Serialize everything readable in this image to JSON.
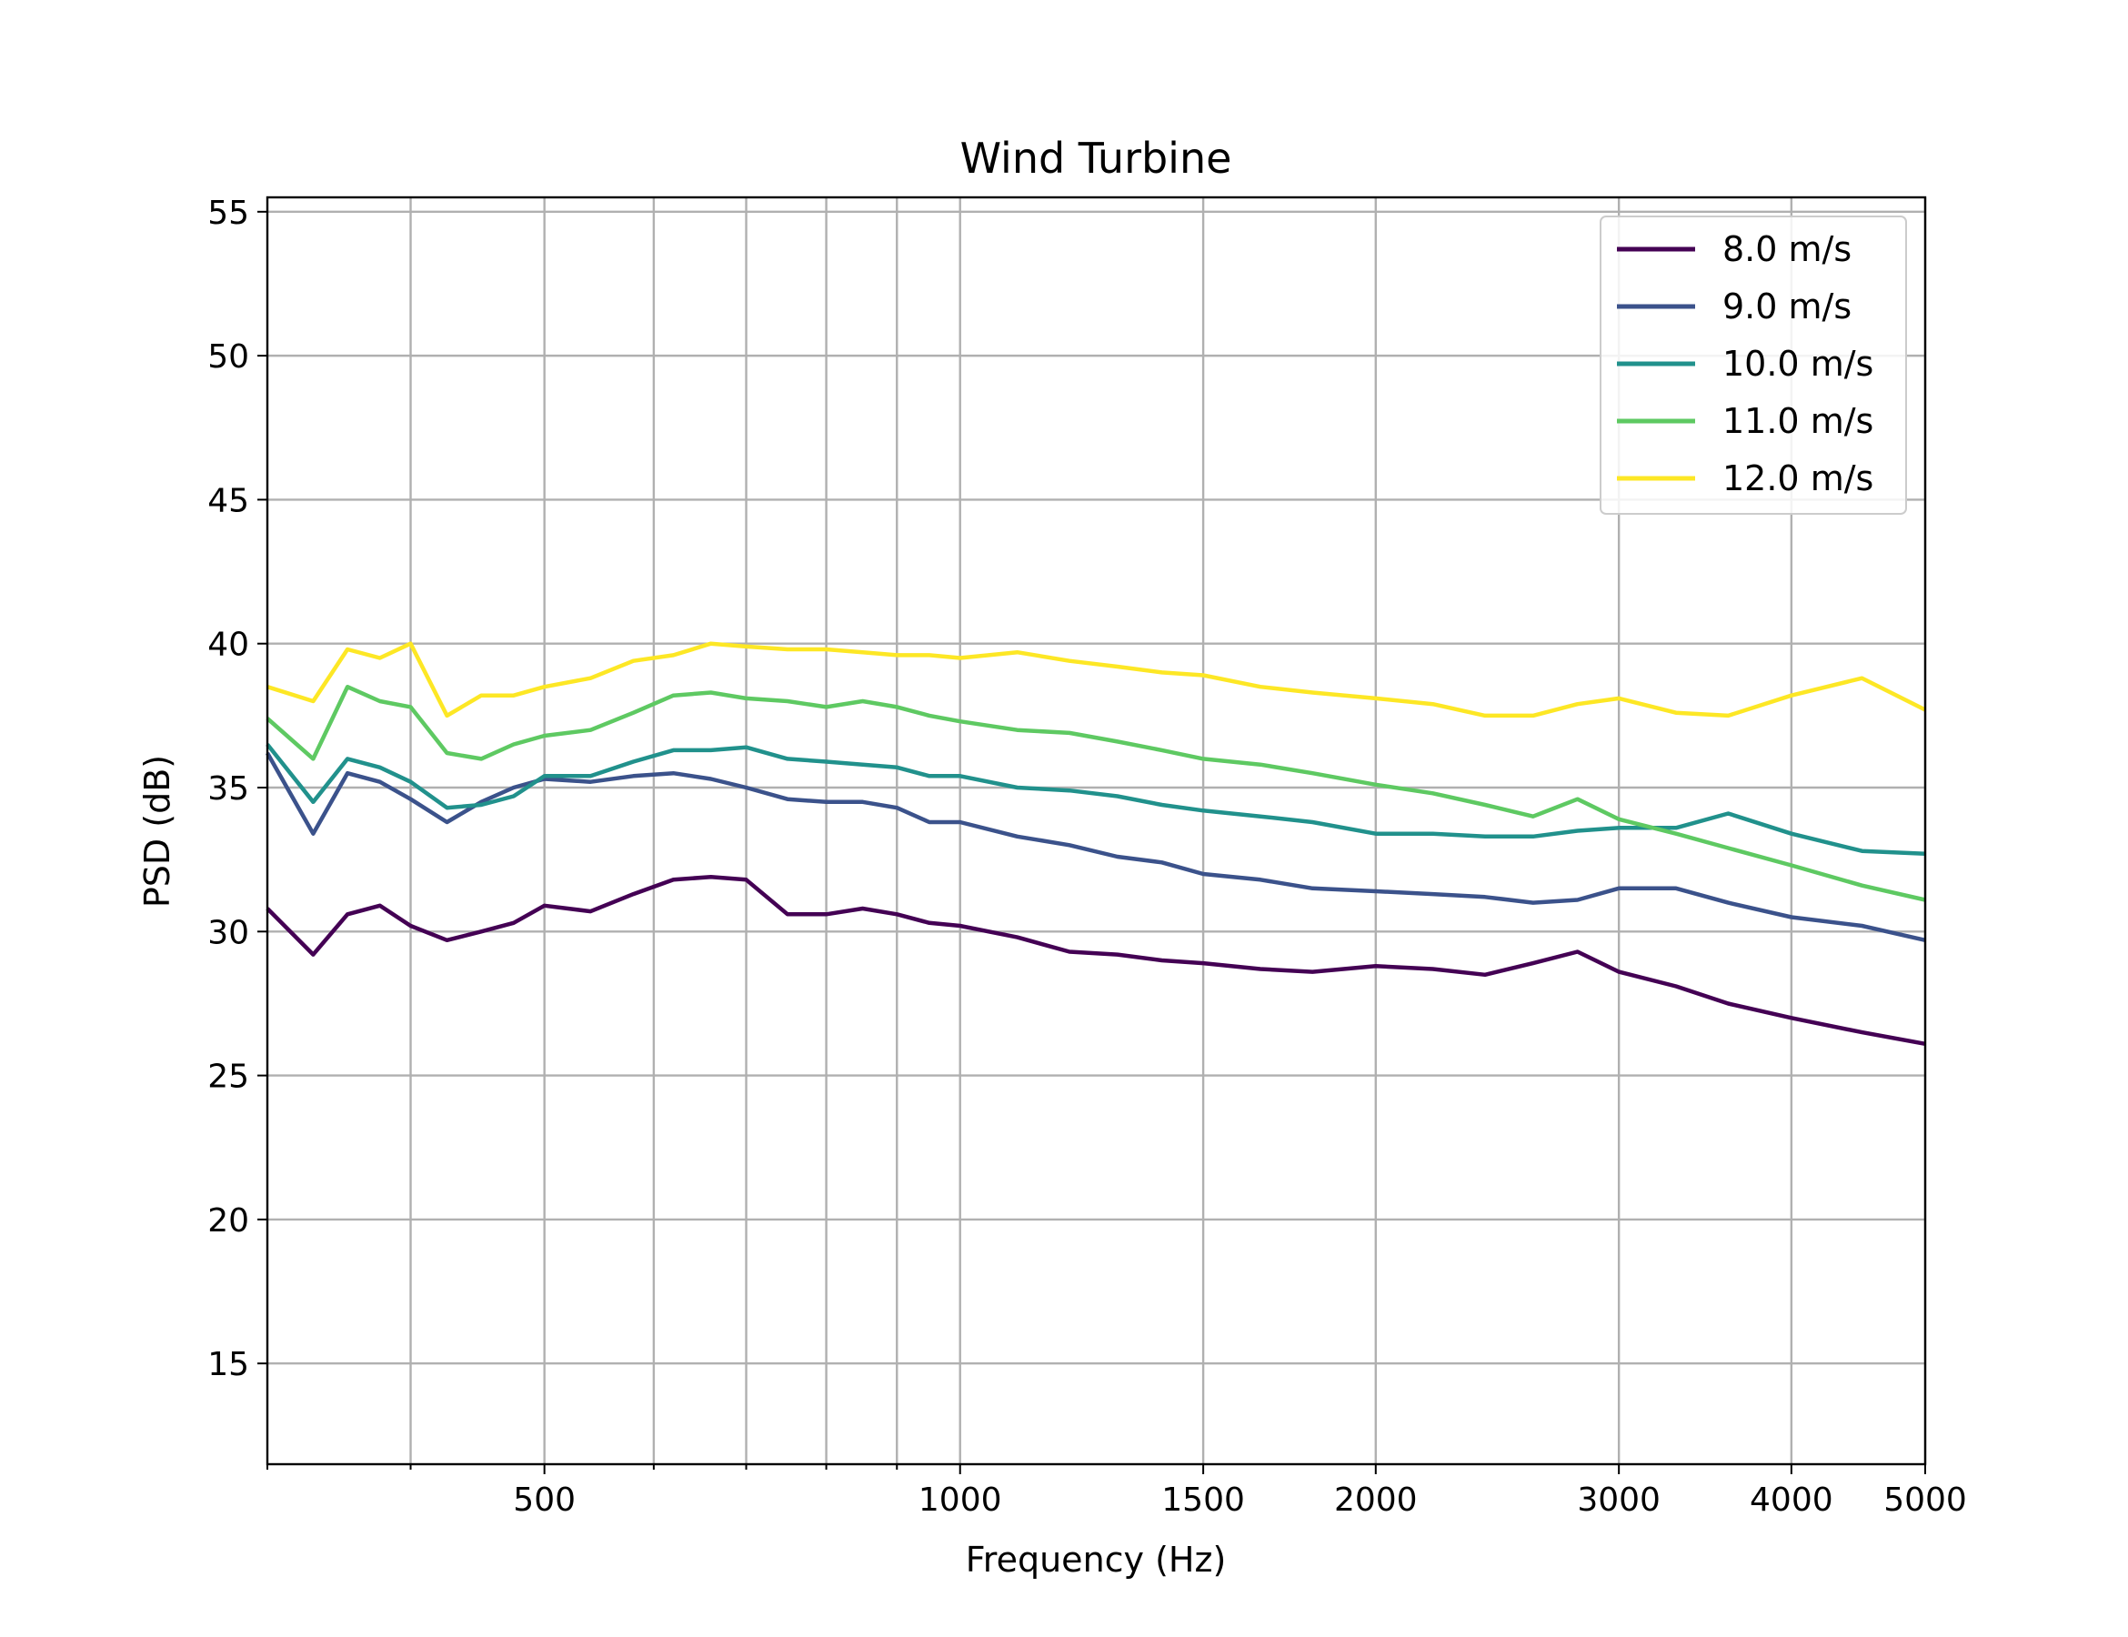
{
  "chart_data": {
    "type": "line",
    "title": "Wind Turbine",
    "xlabel": "Frequency (Hz)",
    "ylabel": "PSD (dB)",
    "xscale": "log",
    "xlim": [
      315,
      5000
    ],
    "ylim": [
      11.5,
      55.5
    ],
    "xticks_major": [
      {
        "value": 500,
        "label": "500"
      },
      {
        "value": 1000,
        "label": "1000"
      },
      {
        "value": 1500,
        "label": "1500"
      },
      {
        "value": 2000,
        "label": "2000"
      },
      {
        "value": 3000,
        "label": "3000"
      },
      {
        "value": 4000,
        "label": "4000"
      },
      {
        "value": 5000,
        "label": "5000"
      }
    ],
    "xticks_minor": [
      400,
      600,
      700,
      800,
      900
    ],
    "yticks": [
      {
        "value": 15,
        "label": "15"
      },
      {
        "value": 20,
        "label": "20"
      },
      {
        "value": 25,
        "label": "25"
      },
      {
        "value": 30,
        "label": "30"
      },
      {
        "value": 35,
        "label": "35"
      },
      {
        "value": 40,
        "label": "40"
      },
      {
        "value": 45,
        "label": "45"
      },
      {
        "value": 50,
        "label": "50"
      },
      {
        "value": 55,
        "label": "55"
      }
    ],
    "grid": true,
    "legend_position": "upper right",
    "x": [
      315,
      340,
      360,
      380,
      400,
      425,
      450,
      475,
      500,
      540,
      580,
      620,
      660,
      700,
      750,
      800,
      850,
      900,
      950,
      1000,
      1100,
      1200,
      1300,
      1400,
      1500,
      1650,
      1800,
      2000,
      2200,
      2400,
      2600,
      2800,
      3000,
      3300,
      3600,
      4000,
      4500,
      5000
    ],
    "series": [
      {
        "name": "8.0 m/s",
        "color": "#440154",
        "values": [
          30.8,
          29.2,
          30.6,
          30.9,
          30.2,
          29.7,
          30.0,
          30.3,
          30.9,
          30.7,
          31.3,
          31.8,
          31.9,
          31.8,
          30.6,
          30.6,
          30.8,
          30.6,
          30.3,
          30.2,
          29.8,
          29.3,
          29.2,
          29.0,
          28.9,
          28.7,
          28.6,
          28.8,
          28.7,
          28.5,
          28.9,
          29.3,
          28.6,
          28.1,
          27.5,
          27.0,
          26.5,
          26.1
        ]
      },
      {
        "name": "9.0 m/s",
        "color": "#3b528b",
        "values": [
          36.2,
          33.4,
          35.5,
          35.2,
          34.6,
          33.8,
          34.5,
          35.0,
          35.3,
          35.2,
          35.4,
          35.5,
          35.3,
          35.0,
          34.6,
          34.5,
          34.5,
          34.3,
          33.8,
          33.8,
          33.3,
          33.0,
          32.6,
          32.4,
          32.0,
          31.8,
          31.5,
          31.4,
          31.3,
          31.2,
          31.0,
          31.1,
          31.5,
          31.5,
          31.0,
          30.5,
          30.2,
          29.7
        ]
      },
      {
        "name": "10.0 m/s",
        "color": "#21918c",
        "values": [
          36.5,
          34.5,
          36.0,
          35.7,
          35.2,
          34.3,
          34.4,
          34.7,
          35.4,
          35.4,
          35.9,
          36.3,
          36.3,
          36.4,
          36.0,
          35.9,
          35.8,
          35.7,
          35.4,
          35.4,
          35.0,
          34.9,
          34.7,
          34.4,
          34.2,
          34.0,
          33.8,
          33.4,
          33.4,
          33.3,
          33.3,
          33.5,
          33.6,
          33.6,
          34.1,
          33.4,
          32.8,
          32.7
        ]
      },
      {
        "name": "11.0 m/s",
        "color": "#5ec962",
        "values": [
          37.4,
          36.0,
          38.5,
          38.0,
          37.8,
          36.2,
          36.0,
          36.5,
          36.8,
          37.0,
          37.6,
          38.2,
          38.3,
          38.1,
          38.0,
          37.8,
          38.0,
          37.8,
          37.5,
          37.3,
          37.0,
          36.9,
          36.6,
          36.3,
          36.0,
          35.8,
          35.5,
          35.1,
          34.8,
          34.4,
          34.0,
          34.6,
          33.9,
          33.4,
          32.9,
          32.3,
          31.6,
          31.1
        ]
      },
      {
        "name": "12.0 m/s",
        "color": "#fde725",
        "values": [
          38.5,
          38.0,
          39.8,
          39.5,
          40.0,
          37.5,
          38.2,
          38.2,
          38.5,
          38.8,
          39.4,
          39.6,
          40.0,
          39.9,
          39.8,
          39.8,
          39.7,
          39.6,
          39.6,
          39.5,
          39.7,
          39.4,
          39.2,
          39.0,
          38.9,
          38.5,
          38.3,
          38.1,
          37.9,
          37.5,
          37.5,
          37.9,
          38.1,
          37.6,
          37.5,
          38.2,
          38.8,
          37.7
        ]
      }
    ]
  }
}
